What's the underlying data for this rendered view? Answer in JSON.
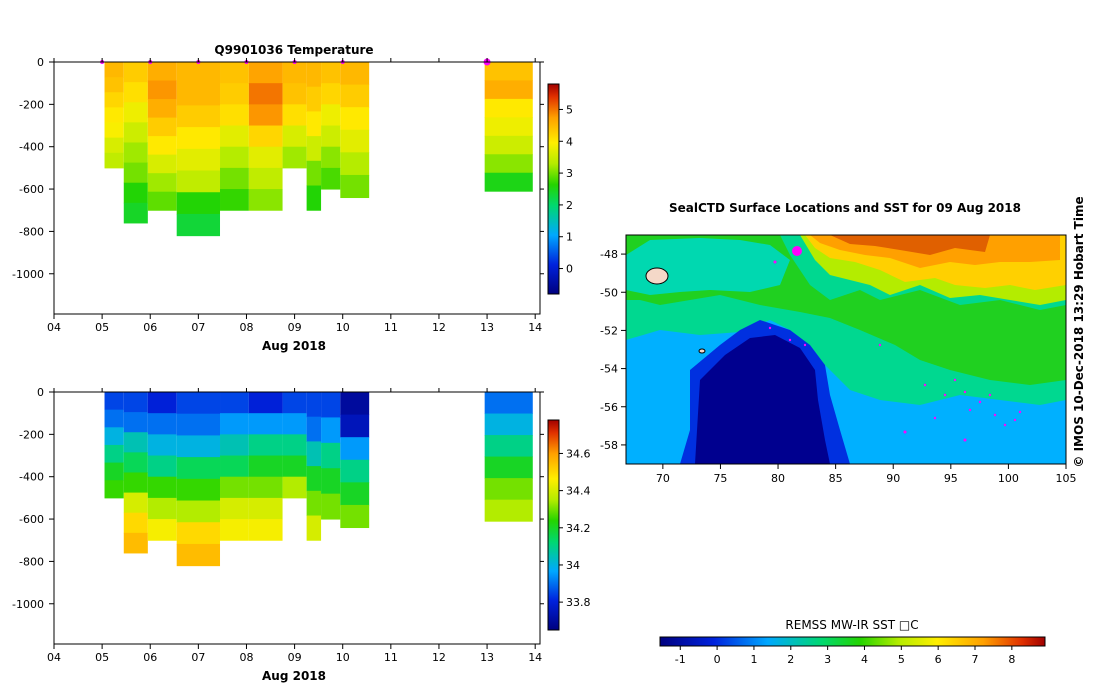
{
  "chart_data": [
    {
      "type": "heatmap",
      "title": "Q9901036  Temperature",
      "xlabel": "Aug 2018",
      "x_ticks": [
        "04",
        "05",
        "06",
        "07",
        "08",
        "09",
        "10",
        "11",
        "12",
        "13",
        "14"
      ],
      "y_ticks": [
        "0",
        "-200",
        "-400",
        "-600",
        "-800",
        "-1000"
      ],
      "xlim": [
        4,
        14.1
      ],
      "ylim": [
        -1190,
        0
      ],
      "colorbar": {
        "ticks": [
          "0",
          "1",
          "2",
          "3",
          "4",
          "5"
        ],
        "range": [
          -0.8,
          5.8
        ]
      },
      "profile_markers": [
        5.0,
        6.0,
        7.0,
        8.0,
        9.0,
        10.0,
        13.0
      ],
      "profiles": [
        {
          "x0": 5.05,
          "x1": 5.45,
          "depth": 500,
          "values": [
            4.5,
            4.4,
            4.2,
            4.0,
            3.9,
            3.6,
            3.4
          ]
        },
        {
          "x0": 5.45,
          "x1": 5.95,
          "depth": 760,
          "values": [
            4.3,
            4.1,
            3.8,
            3.5,
            3.2,
            3.0,
            2.6,
            2.4
          ]
        },
        {
          "x0": 5.95,
          "x1": 6.55,
          "depth": 700,
          "values": [
            4.6,
            4.8,
            4.6,
            4.3,
            4.0,
            3.6,
            3.2,
            2.9
          ]
        },
        {
          "x0": 6.55,
          "x1": 7.45,
          "depth": 820,
          "values": [
            4.5,
            4.5,
            4.3,
            4.0,
            3.7,
            3.4,
            2.6,
            2.3
          ]
        },
        {
          "x0": 7.45,
          "x1": 8.05,
          "depth": 700,
          "values": [
            4.4,
            4.3,
            4.1,
            3.7,
            3.3,
            3.0,
            2.7
          ]
        },
        {
          "x0": 8.05,
          "x1": 8.75,
          "depth": 700,
          "values": [
            4.7,
            5.0,
            4.8,
            4.2,
            3.7,
            3.4,
            3.1
          ]
        },
        {
          "x0": 8.75,
          "x1": 9.25,
          "depth": 500,
          "values": [
            4.5,
            4.4,
            4.1,
            3.6,
            3.2
          ]
        },
        {
          "x0": 9.25,
          "x1": 9.55,
          "depth": 700,
          "values": [
            4.5,
            4.3,
            4.0,
            3.5,
            3.0,
            2.6
          ]
        },
        {
          "x0": 9.55,
          "x1": 9.95,
          "depth": 600,
          "values": [
            4.4,
            4.2,
            3.8,
            3.5,
            3.1,
            2.8
          ]
        },
        {
          "x0": 9.95,
          "x1": 10.55,
          "depth": 640,
          "values": [
            4.5,
            4.3,
            4.0,
            3.7,
            3.3,
            3.0
          ]
        },
        {
          "x0": 12.95,
          "x1": 13.95,
          "depth": 610,
          "values": [
            4.4,
            4.6,
            4.0,
            3.8,
            3.5,
            3.1,
            2.5
          ]
        }
      ]
    },
    {
      "type": "heatmap",
      "title": "",
      "xlabel": "Aug 2018",
      "x_ticks": [
        "04",
        "05",
        "06",
        "07",
        "08",
        "09",
        "10",
        "11",
        "12",
        "13",
        "14"
      ],
      "y_ticks": [
        "0",
        "-200",
        "-400",
        "-600",
        "-800",
        "-1000"
      ],
      "xlim": [
        4,
        14.1
      ],
      "ylim": [
        -1190,
        0
      ],
      "colorbar": {
        "ticks": [
          "33.8",
          "34",
          "34.2",
          "34.4",
          "34.6"
        ],
        "range": [
          33.65,
          34.78
        ]
      },
      "profiles": [
        {
          "x0": 5.05,
          "x1": 5.45,
          "depth": 500,
          "values": [
            33.85,
            33.9,
            34.0,
            34.1,
            34.2,
            34.25
          ]
        },
        {
          "x0": 5.45,
          "x1": 5.95,
          "depth": 760,
          "values": [
            33.85,
            33.9,
            34.05,
            34.15,
            34.25,
            34.4,
            34.5,
            34.55
          ]
        },
        {
          "x0": 5.95,
          "x1": 6.55,
          "depth": 700,
          "values": [
            33.8,
            33.9,
            34.0,
            34.1,
            34.25,
            34.35,
            34.45
          ]
        },
        {
          "x0": 6.55,
          "x1": 7.45,
          "depth": 820,
          "values": [
            33.85,
            33.9,
            34.0,
            34.15,
            34.25,
            34.35,
            34.5,
            34.55
          ]
        },
        {
          "x0": 7.45,
          "x1": 8.05,
          "depth": 700,
          "values": [
            33.85,
            33.95,
            34.05,
            34.15,
            34.3,
            34.4,
            34.45
          ]
        },
        {
          "x0": 8.05,
          "x1": 8.75,
          "depth": 700,
          "values": [
            33.8,
            33.95,
            34.1,
            34.2,
            34.3,
            34.4,
            34.45
          ]
        },
        {
          "x0": 8.75,
          "x1": 9.25,
          "depth": 500,
          "values": [
            33.85,
            33.95,
            34.1,
            34.2,
            34.35
          ]
        },
        {
          "x0": 9.25,
          "x1": 9.55,
          "depth": 700,
          "values": [
            33.85,
            33.9,
            34.05,
            34.2,
            34.3,
            34.4
          ]
        },
        {
          "x0": 9.55,
          "x1": 9.95,
          "depth": 600,
          "values": [
            33.85,
            33.95,
            34.1,
            34.2,
            34.3
          ]
        },
        {
          "x0": 9.95,
          "x1": 10.55,
          "depth": 640,
          "values": [
            33.7,
            33.75,
            33.95,
            34.1,
            34.2,
            34.3
          ]
        },
        {
          "x0": 12.95,
          "x1": 13.95,
          "depth": 610,
          "values": [
            33.9,
            34.0,
            34.1,
            34.2,
            34.3,
            34.35
          ]
        }
      ]
    },
    {
      "type": "heatmap",
      "title": "SealCTD Surface Locations and SST for 09 Aug 2018",
      "x_ticks": [
        "70",
        "75",
        "80",
        "85",
        "90",
        "95",
        "100",
        "105"
      ],
      "y_ticks": [
        "-48",
        "-50",
        "-52",
        "-54",
        "-56",
        "-58"
      ],
      "xlim": [
        66.8,
        105
      ],
      "ylim": [
        -59,
        -47
      ],
      "colorbar": {
        "label": "REMSS MW-IR SST □C",
        "ticks": [
          "-1",
          "0",
          "1",
          "2",
          "3",
          "4",
          "5",
          "6",
          "7",
          "8"
        ],
        "range": [
          -1.55,
          8.9
        ]
      },
      "credit": "© IMOS 10-Dec-2018 13:29 Hobart Time"
    }
  ]
}
